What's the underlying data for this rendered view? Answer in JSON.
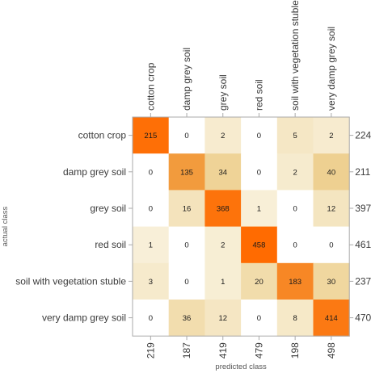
{
  "chart_data": {
    "type": "heatmap",
    "title": "",
    "xlabel": "predicted class",
    "ylabel": "actual class",
    "classes": [
      "cotton crop",
      "damp grey soil",
      "grey soil",
      "red soil",
      "soil with vegetation stuble",
      "very damp grey soil"
    ],
    "matrix": [
      [
        215,
        0,
        2,
        0,
        5,
        2
      ],
      [
        0,
        135,
        34,
        0,
        2,
        40
      ],
      [
        0,
        16,
        368,
        1,
        0,
        12
      ],
      [
        1,
        0,
        2,
        458,
        0,
        0
      ],
      [
        3,
        0,
        1,
        20,
        183,
        30
      ],
      [
        0,
        36,
        12,
        0,
        8,
        414
      ]
    ],
    "row_totals": [
      224,
      211,
      397,
      461,
      237,
      470
    ],
    "column_totals": [
      219,
      187,
      419,
      479,
      198,
      498
    ],
    "colors": {
      "low": "#f9f3e0",
      "mid": "#e8bf6a",
      "high": "#ff6a00",
      "zero": "#ffffff",
      "frame": "#aaaaaa"
    }
  }
}
